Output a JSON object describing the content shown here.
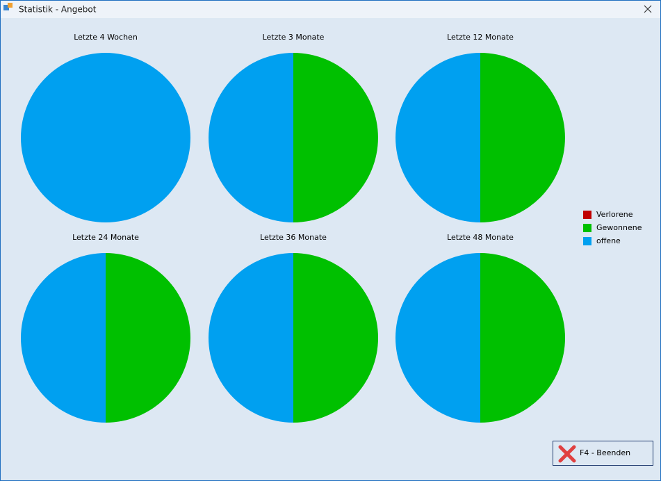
{
  "window": {
    "title": "Statistik - Angebot"
  },
  "legend": {
    "categories": [
      "Verlorene",
      "Gewonnene",
      "offene"
    ],
    "colors": [
      "#c00000",
      "#00c000",
      "#00a0f0"
    ]
  },
  "chart_data": [
    {
      "type": "pie",
      "title": "Letzte 4 Wochen",
      "values": [
        0,
        0,
        100
      ]
    },
    {
      "type": "pie",
      "title": "Letzte 3 Monate",
      "values": [
        0,
        50,
        50
      ]
    },
    {
      "type": "pie",
      "title": "Letzte 12 Monate",
      "values": [
        0,
        50,
        50
      ]
    },
    {
      "type": "pie",
      "title": "Letzte 24 Monate",
      "values": [
        0,
        50,
        50
      ]
    },
    {
      "type": "pie",
      "title": "Letzte 36 Monate",
      "values": [
        0,
        50,
        50
      ]
    },
    {
      "type": "pie",
      "title": "Letzte 48 Monate",
      "values": [
        0,
        50,
        50
      ]
    }
  ],
  "button": {
    "label": "F4 - Beenden"
  }
}
